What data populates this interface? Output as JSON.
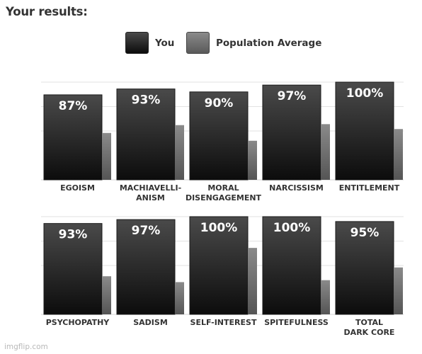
{
  "heading": "Your results:",
  "legend": {
    "you": "You",
    "population": "Population Average"
  },
  "colors": {
    "you_top": "#4a4a4a",
    "you_bottom": "#0c0c0c",
    "population_top": "#8a8a8a",
    "population_bottom": "#555555"
  },
  "chart_data": [
    {
      "type": "bar",
      "categories": [
        "EGOISM",
        "MACHIAVELLI-|ANISM",
        "MORAL|DISENGAGEMENT",
        "NARCISSISM",
        "ENTITLEMENT"
      ],
      "series": [
        {
          "name": "You",
          "values": [
            87,
            93,
            90,
            97,
            100
          ],
          "labels": [
            "87%",
            "93%",
            "90%",
            "97%",
            "100%"
          ]
        },
        {
          "name": "Population Average",
          "values": [
            48,
            56,
            40,
            57,
            52
          ]
        }
      ],
      "ylim": [
        0,
        100
      ],
      "grid": true
    },
    {
      "type": "bar",
      "categories": [
        "PSYCHOPATHY",
        "SADISM",
        "SELF-INTEREST",
        "SPITEFULNESS",
        "TOTAL|DARK CORE"
      ],
      "series": [
        {
          "name": "You",
          "values": [
            93,
            97,
            100,
            100,
            95
          ],
          "labels": [
            "93%",
            "97%",
            "100%",
            "100%",
            "95%"
          ]
        },
        {
          "name": "Population Average",
          "values": [
            39,
            33,
            68,
            35,
            48
          ]
        }
      ],
      "ylim": [
        0,
        100
      ],
      "grid": true
    }
  ],
  "watermark": "imgflip.com"
}
